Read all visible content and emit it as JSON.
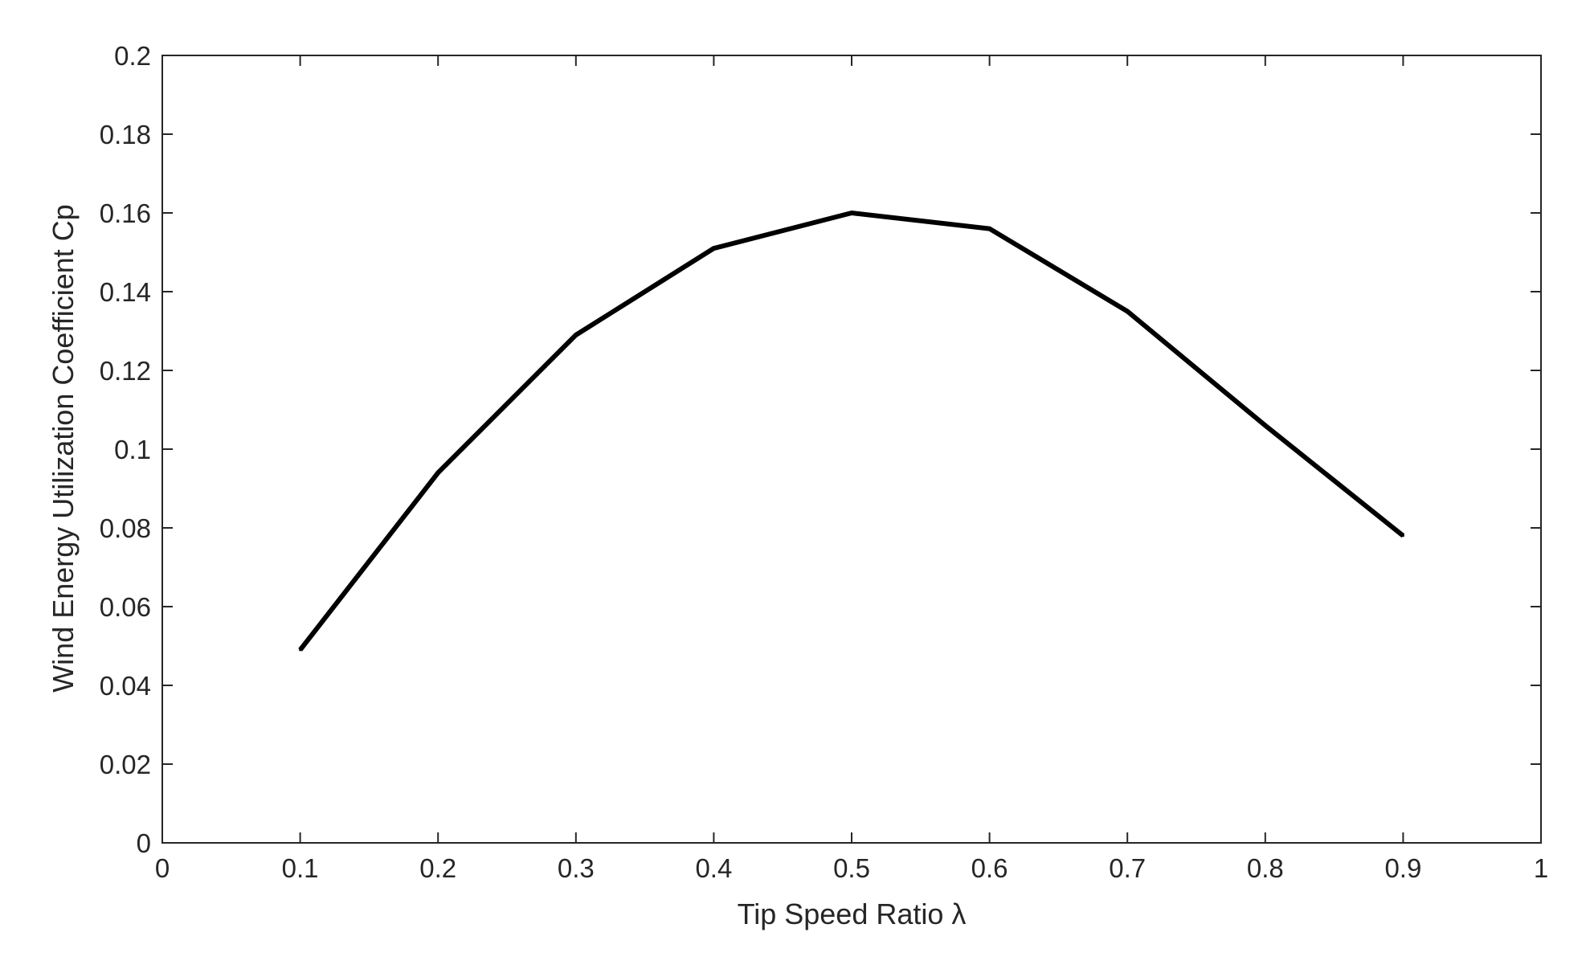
{
  "chart_data": {
    "type": "line",
    "title": "",
    "xlabel": "Tip Speed Ratio  λ",
    "ylabel": "Wind Energy Utilization Coefficient  Cp",
    "xlim": [
      0,
      1
    ],
    "ylim": [
      0,
      0.2
    ],
    "x_ticks": [
      "0",
      "0.1",
      "0.2",
      "0.3",
      "0.4",
      "0.5",
      "0.6",
      "0.7",
      "0.8",
      "0.9",
      "1"
    ],
    "y_ticks": [
      "0",
      "0.02",
      "0.04",
      "0.06",
      "0.08",
      "0.1",
      "0.12",
      "0.14",
      "0.16",
      "0.18",
      "0.2"
    ],
    "grid": false,
    "legend": "none",
    "series": [
      {
        "x": [
          0.1,
          0.2,
          0.3,
          0.4,
          0.5,
          0.6,
          0.7,
          0.8,
          0.9
        ],
        "y": [
          0.049,
          0.094,
          0.129,
          0.151,
          0.16,
          0.156,
          0.135,
          0.106,
          0.078
        ],
        "color": "#000000"
      }
    ]
  }
}
